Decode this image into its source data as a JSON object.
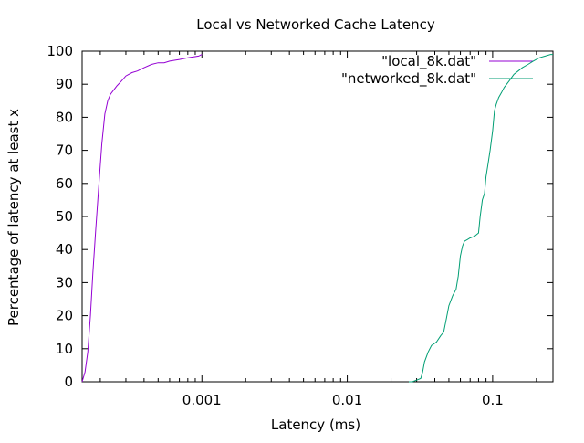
{
  "chart_data": {
    "type": "line",
    "title": "Local vs Networked Cache Latency",
    "xlabel": "Latency (ms)",
    "ylabel": "Percentage of latency at least x",
    "xscale": "log",
    "xlim": [
      0.00015,
      0.26
    ],
    "ylim": [
      0,
      100
    ],
    "x_ticks": [
      0.001,
      0.01,
      0.1
    ],
    "x_tick_labels": [
      "0.001",
      "0.01",
      "0.1"
    ],
    "y_ticks": [
      0,
      10,
      20,
      30,
      40,
      50,
      60,
      70,
      80,
      90,
      100
    ],
    "grid": false,
    "legend_position": "top-right",
    "series": [
      {
        "name": "\"local_8k.dat\"",
        "color": "#9400d3",
        "x": [
          0.00015,
          0.000157,
          0.000164,
          0.000171,
          0.000178,
          0.000186,
          0.000195,
          0.000205,
          0.000215,
          0.000225,
          0.000235,
          0.000245,
          0.00026,
          0.00028,
          0.0003,
          0.00033,
          0.00036,
          0.0004,
          0.00045,
          0.0005,
          0.00055,
          0.0006,
          0.0007,
          0.0008,
          0.00095,
          0.001
        ],
        "y": [
          0,
          3,
          9,
          20,
          33,
          46,
          59,
          72,
          81,
          85,
          87,
          88,
          89.5,
          91,
          92.5,
          93.5,
          94,
          95,
          96,
          96.5,
          96.5,
          97,
          97.5,
          98,
          98.5,
          99
        ]
      },
      {
        "name": "\"networked_8k.dat\"",
        "color": "#009e73",
        "x": [
          0.0265,
          0.028,
          0.03,
          0.032,
          0.033,
          0.034,
          0.036,
          0.038,
          0.041,
          0.044,
          0.046,
          0.048,
          0.05,
          0.053,
          0.056,
          0.058,
          0.06,
          0.062,
          0.064,
          0.067,
          0.07,
          0.075,
          0.08,
          0.082,
          0.085,
          0.088,
          0.09,
          0.093,
          0.096,
          0.1,
          0.103,
          0.106,
          0.11,
          0.115,
          0.12,
          0.13,
          0.14,
          0.15,
          0.16,
          0.175,
          0.19,
          0.21,
          0.23,
          0.25,
          0.26
        ],
        "y": [
          0,
          0,
          0.5,
          1,
          3,
          6,
          9,
          11,
          12,
          14,
          15,
          19,
          23,
          26,
          28,
          32,
          38,
          41,
          42.5,
          43,
          43.5,
          44,
          45,
          50,
          55,
          57,
          62,
          66,
          70,
          76,
          82,
          84,
          86,
          87.5,
          89,
          91,
          93,
          94,
          95,
          96,
          97,
          98,
          98.5,
          99,
          99
        ]
      }
    ]
  }
}
